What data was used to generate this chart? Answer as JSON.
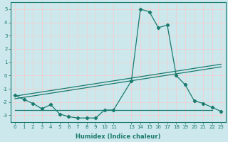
{
  "xlabel": "Humidex (Indice chaleur)",
  "ylabel": "",
  "bg_color": "#cce8ec",
  "grid_color": "#f0d0d0",
  "line_color": "#1a7a6e",
  "x_data": [
    0,
    1,
    2,
    3,
    4,
    5,
    6,
    7,
    8,
    9,
    10,
    11,
    13,
    14,
    15,
    16,
    17,
    18,
    19,
    20,
    21,
    22,
    23
  ],
  "y_curve": [
    -1.5,
    -1.8,
    -2.1,
    -2.5,
    -2.2,
    -2.9,
    -3.1,
    -3.2,
    -3.2,
    -3.2,
    -2.6,
    -2.6,
    -0.4,
    5.0,
    4.8,
    3.6,
    3.8,
    0.0,
    -0.7,
    -1.9,
    -2.1,
    -2.4,
    -2.7
  ],
  "reg1_x0": 0,
  "reg1_y0": -1.55,
  "reg1_x1": 23,
  "reg1_y1": 0.85,
  "reg2_x0": 0,
  "reg2_y0": -1.75,
  "reg2_x1": 23,
  "reg2_y1": 0.65,
  "flat_x0": 0,
  "flat_x1": 22,
  "flat_y": -2.6,
  "xlim": [
    -0.5,
    23.5
  ],
  "ylim": [
    -3.5,
    5.5
  ],
  "yticks": [
    -3,
    -2,
    -1,
    0,
    1,
    2,
    3,
    4,
    5
  ],
  "xticks": [
    0,
    1,
    2,
    3,
    4,
    5,
    6,
    7,
    8,
    9,
    10,
    11,
    13,
    14,
    15,
    16,
    17,
    18,
    19,
    20,
    21,
    22,
    23
  ]
}
